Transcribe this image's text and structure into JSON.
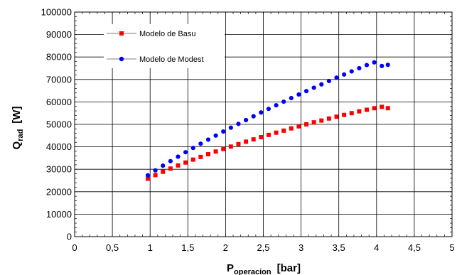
{
  "chart_data": {
    "type": "scatter",
    "title": "",
    "xlabel": "P",
    "xlabel_sub": "operacion",
    "xlabel_unit": "[bar]",
    "ylabel": "Q",
    "ylabel_sub": "rad",
    "ylabel_unit": "[W]",
    "xlim": [
      0,
      5
    ],
    "ylim": [
      0,
      100000
    ],
    "xticks": [
      0,
      0.5,
      1,
      1.5,
      2,
      2.5,
      3,
      3.5,
      4,
      4.5,
      5
    ],
    "xtick_labels": [
      "0",
      "0,5",
      "1",
      "1,5",
      "2",
      "2,5",
      "3",
      "3,5",
      "4",
      "4,5",
      "5"
    ],
    "yticks": [
      0,
      10000,
      20000,
      30000,
      40000,
      50000,
      60000,
      70000,
      80000,
      90000,
      100000
    ],
    "ytick_labels": [
      "0",
      "10000",
      "20000",
      "30000",
      "40000",
      "50000",
      "60000",
      "70000",
      "80000",
      "90000",
      "100000"
    ],
    "grid": true,
    "legend_position": "top-left",
    "series": [
      {
        "name": "Modelo de Basu",
        "color": "#ff0000",
        "marker": "square",
        "x": [
          0.97,
          1.07,
          1.17,
          1.27,
          1.37,
          1.47,
          1.57,
          1.67,
          1.77,
          1.87,
          1.97,
          2.07,
          2.17,
          2.27,
          2.37,
          2.47,
          2.57,
          2.67,
          2.77,
          2.87,
          2.97,
          3.07,
          3.17,
          3.27,
          3.37,
          3.47,
          3.57,
          3.67,
          3.77,
          3.87,
          3.97,
          4.07,
          4.15
        ],
        "y": [
          25800,
          27400,
          28900,
          30300,
          31700,
          33000,
          34300,
          35500,
          36700,
          37900,
          39000,
          40100,
          41200,
          42300,
          43300,
          44300,
          45300,
          46300,
          47200,
          48200,
          49100,
          50000,
          50900,
          51700,
          52600,
          53400,
          54200,
          55000,
          55800,
          56500,
          57200,
          57800,
          57200
        ]
      },
      {
        "name": "Modelo de Modest",
        "color": "#0000ff",
        "marker": "circle",
        "x": [
          0.97,
          1.07,
          1.17,
          1.27,
          1.37,
          1.47,
          1.57,
          1.67,
          1.77,
          1.87,
          1.97,
          2.07,
          2.17,
          2.27,
          2.37,
          2.47,
          2.57,
          2.67,
          2.77,
          2.87,
          2.97,
          3.07,
          3.17,
          3.27,
          3.37,
          3.47,
          3.57,
          3.67,
          3.77,
          3.87,
          3.97,
          4.07,
          4.15
        ],
        "y": [
          27300,
          29500,
          31600,
          33600,
          35600,
          37600,
          39500,
          41400,
          43200,
          45000,
          46800,
          48500,
          50200,
          51900,
          53600,
          55300,
          56900,
          58500,
          60100,
          61700,
          63300,
          64800,
          66300,
          67800,
          69300,
          70800,
          72200,
          73600,
          75000,
          76400,
          77600,
          76000,
          76500
        ]
      }
    ]
  }
}
